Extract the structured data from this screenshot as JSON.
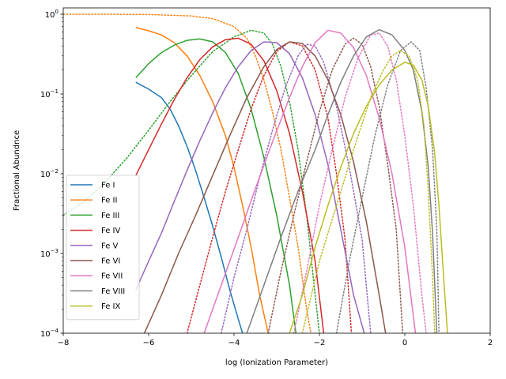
{
  "chart_data": {
    "type": "line",
    "xlabel": "log (Ionization Parameter)",
    "ylabel": "Fractional Abundnce",
    "xlim": [
      -8,
      2
    ],
    "ylim": [
      0.0001,
      1.2
    ],
    "yscale": "log",
    "x_ticks": [
      {
        "value": -8,
        "label": "−8"
      },
      {
        "value": -6,
        "label": "−6"
      },
      {
        "value": -4,
        "label": "−4"
      },
      {
        "value": -2,
        "label": "−2"
      },
      {
        "value": 0,
        "label": "0"
      },
      {
        "value": 2,
        "label": "2"
      }
    ],
    "y_ticks": [
      {
        "value": 0.0001,
        "base": "10",
        "exp": "−4"
      },
      {
        "value": 0.001,
        "base": "10",
        "exp": "−3"
      },
      {
        "value": 0.01,
        "base": "10",
        "exp": "−2"
      },
      {
        "value": 0.1,
        "base": "10",
        "exp": "−1"
      },
      {
        "value": 1,
        "base": "10",
        "exp": "0"
      }
    ],
    "grid": false,
    "legend_position": "lower-left",
    "series": [
      {
        "name": "Fe I",
        "color": "#1f77b4",
        "solid": [
          [
            -6.3,
            0.14
          ],
          [
            -6.0,
            0.115
          ],
          [
            -5.7,
            0.09
          ],
          [
            -5.5,
            0.065
          ],
          [
            -5.3,
            0.04
          ],
          [
            -5.1,
            0.022
          ],
          [
            -4.9,
            0.011
          ],
          [
            -4.7,
            0.005
          ],
          [
            -4.5,
            0.0022
          ],
          [
            -4.3,
            0.0009
          ],
          [
            -4.1,
            0.00035
          ],
          [
            -3.9,
            0.00015
          ],
          [
            -3.8,
            0.0001
          ]
        ],
        "dotted": null
      },
      {
        "name": "Fe II",
        "color": "#ff7f0e",
        "solid": [
          [
            -6.3,
            0.68
          ],
          [
            -6.0,
            0.62
          ],
          [
            -5.7,
            0.55
          ],
          [
            -5.4,
            0.44
          ],
          [
            -5.1,
            0.3
          ],
          [
            -4.8,
            0.17
          ],
          [
            -4.5,
            0.08
          ],
          [
            -4.2,
            0.03
          ],
          [
            -4.0,
            0.012
          ],
          [
            -3.8,
            0.004
          ],
          [
            -3.6,
            0.0012
          ],
          [
            -3.4,
            0.0003
          ],
          [
            -3.2,
            0.0001
          ]
        ],
        "dotted": [
          [
            -8.0,
            1.0
          ],
          [
            -7.0,
            1.0
          ],
          [
            -6.0,
            0.99
          ],
          [
            -5.0,
            0.95
          ],
          [
            -4.5,
            0.88
          ],
          [
            -4.0,
            0.7
          ],
          [
            -3.7,
            0.5
          ],
          [
            -3.5,
            0.3
          ],
          [
            -3.3,
            0.15
          ],
          [
            -3.1,
            0.06
          ],
          [
            -2.9,
            0.02
          ],
          [
            -2.7,
            0.005
          ],
          [
            -2.5,
            0.0012
          ],
          [
            -2.3,
            0.0002
          ],
          [
            -2.2,
            0.0001
          ]
        ]
      },
      {
        "name": "Fe III",
        "color": "#2ca02c",
        "solid": [
          [
            -6.3,
            0.16
          ],
          [
            -6.0,
            0.24
          ],
          [
            -5.7,
            0.33
          ],
          [
            -5.4,
            0.41
          ],
          [
            -5.1,
            0.47
          ],
          [
            -4.8,
            0.49
          ],
          [
            -4.5,
            0.45
          ],
          [
            -4.2,
            0.33
          ],
          [
            -3.9,
            0.18
          ],
          [
            -3.6,
            0.065
          ],
          [
            -3.3,
            0.016
          ],
          [
            -3.0,
            0.003
          ],
          [
            -2.7,
            0.0004
          ],
          [
            -2.55,
            0.0001
          ]
        ],
        "dotted": [
          [
            -8.0,
            0.003
          ],
          [
            -7.5,
            0.0045
          ],
          [
            -7.0,
            0.008
          ],
          [
            -6.5,
            0.016
          ],
          [
            -6.0,
            0.035
          ],
          [
            -5.5,
            0.08
          ],
          [
            -5.0,
            0.17
          ],
          [
            -4.5,
            0.34
          ],
          [
            -4.0,
            0.52
          ],
          [
            -3.6,
            0.63
          ],
          [
            -3.3,
            0.58
          ],
          [
            -3.1,
            0.42
          ],
          [
            -2.9,
            0.22
          ],
          [
            -2.7,
            0.08
          ],
          [
            -2.5,
            0.02
          ],
          [
            -2.3,
            0.003
          ],
          [
            -2.1,
            0.0003
          ],
          [
            -2.0,
            0.0001
          ]
        ]
      },
      {
        "name": "Fe IV",
        "color": "#d62728",
        "solid": [
          [
            -6.3,
            0.0095
          ],
          [
            -6.0,
            0.02
          ],
          [
            -5.7,
            0.042
          ],
          [
            -5.4,
            0.085
          ],
          [
            -5.1,
            0.16
          ],
          [
            -4.8,
            0.27
          ],
          [
            -4.5,
            0.39
          ],
          [
            -4.2,
            0.48
          ],
          [
            -3.9,
            0.5
          ],
          [
            -3.6,
            0.42
          ],
          [
            -3.3,
            0.26
          ],
          [
            -3.0,
            0.11
          ],
          [
            -2.7,
            0.032
          ],
          [
            -2.4,
            0.006
          ],
          [
            -2.1,
            0.0008
          ],
          [
            -1.9,
            0.0001
          ]
        ],
        "dotted": [
          [
            -5.1,
            0.0001
          ],
          [
            -4.8,
            0.0004
          ],
          [
            -4.5,
            0.0016
          ],
          [
            -4.2,
            0.006
          ],
          [
            -3.9,
            0.02
          ],
          [
            -3.6,
            0.065
          ],
          [
            -3.3,
            0.17
          ],
          [
            -3.0,
            0.34
          ],
          [
            -2.7,
            0.45
          ],
          [
            -2.4,
            0.4
          ],
          [
            -2.1,
            0.2
          ],
          [
            -1.8,
            0.05
          ],
          [
            -1.6,
            0.01
          ],
          [
            -1.4,
            0.0015
          ],
          [
            -1.25,
            0.0001
          ]
        ]
      },
      {
        "name": "Fe V",
        "color": "#9467bd",
        "solid": [
          [
            -6.3,
            0.00035
          ],
          [
            -6.0,
            0.0008
          ],
          [
            -5.7,
            0.0018
          ],
          [
            -5.4,
            0.0045
          ],
          [
            -5.1,
            0.011
          ],
          [
            -4.8,
            0.026
          ],
          [
            -4.5,
            0.058
          ],
          [
            -4.2,
            0.12
          ],
          [
            -3.9,
            0.22
          ],
          [
            -3.6,
            0.35
          ],
          [
            -3.3,
            0.45
          ],
          [
            -3.0,
            0.44
          ],
          [
            -2.7,
            0.32
          ],
          [
            -2.4,
            0.16
          ],
          [
            -2.1,
            0.055
          ],
          [
            -1.8,
            0.013
          ],
          [
            -1.5,
            0.002
          ],
          [
            -1.2,
            0.0003
          ],
          [
            -0.95,
            0.0001
          ]
        ],
        "dotted": [
          [
            -4.3,
            0.0001
          ],
          [
            -4.0,
            0.0005
          ],
          [
            -3.7,
            0.002
          ],
          [
            -3.4,
            0.009
          ],
          [
            -3.1,
            0.035
          ],
          [
            -2.8,
            0.12
          ],
          [
            -2.5,
            0.3
          ],
          [
            -2.3,
            0.42
          ],
          [
            -2.1,
            0.4
          ],
          [
            -1.9,
            0.25
          ],
          [
            -1.6,
            0.07
          ],
          [
            -1.3,
            0.012
          ],
          [
            -1.0,
            0.0015
          ],
          [
            -0.8,
            0.0001
          ]
        ]
      },
      {
        "name": "Fe VI",
        "color": "#8c564b",
        "solid": [
          [
            -6.1,
            0.0001
          ],
          [
            -5.7,
            0.0003
          ],
          [
            -5.3,
            0.001
          ],
          [
            -4.9,
            0.003
          ],
          [
            -4.5,
            0.0095
          ],
          [
            -4.1,
            0.03
          ],
          [
            -3.7,
            0.09
          ],
          [
            -3.3,
            0.22
          ],
          [
            -3.0,
            0.36
          ],
          [
            -2.7,
            0.45
          ],
          [
            -2.4,
            0.43
          ],
          [
            -2.1,
            0.3
          ],
          [
            -1.8,
            0.15
          ],
          [
            -1.5,
            0.055
          ],
          [
            -1.2,
            0.014
          ],
          [
            -0.9,
            0.0025
          ],
          [
            -0.6,
            0.0003
          ],
          [
            -0.45,
            0.0001
          ]
        ],
        "dotted": [
          [
            -3.2,
            0.0001
          ],
          [
            -2.9,
            0.0006
          ],
          [
            -2.6,
            0.003
          ],
          [
            -2.3,
            0.014
          ],
          [
            -2.0,
            0.06
          ],
          [
            -1.7,
            0.2
          ],
          [
            -1.4,
            0.42
          ],
          [
            -1.2,
            0.5
          ],
          [
            -1.0,
            0.42
          ],
          [
            -0.8,
            0.22
          ],
          [
            -0.6,
            0.07
          ],
          [
            -0.4,
            0.013
          ],
          [
            -0.2,
            0.002
          ],
          [
            -0.05,
            0.0001
          ]
        ]
      },
      {
        "name": "Fe VII",
        "color": "#e377c2",
        "solid": [
          [
            -4.7,
            0.0001
          ],
          [
            -4.3,
            0.0004
          ],
          [
            -3.9,
            0.0016
          ],
          [
            -3.5,
            0.0065
          ],
          [
            -3.1,
            0.025
          ],
          [
            -2.7,
            0.09
          ],
          [
            -2.4,
            0.22
          ],
          [
            -2.1,
            0.44
          ],
          [
            -1.8,
            0.63
          ],
          [
            -1.5,
            0.58
          ],
          [
            -1.2,
            0.38
          ],
          [
            -0.9,
            0.17
          ],
          [
            -0.6,
            0.05
          ],
          [
            -0.3,
            0.01
          ],
          [
            0.0,
            0.0012
          ],
          [
            0.25,
            0.0001
          ]
        ],
        "dotted": [
          [
            -2.6,
            0.0001
          ],
          [
            -2.3,
            0.0006
          ],
          [
            -2.0,
            0.004
          ],
          [
            -1.7,
            0.02
          ],
          [
            -1.4,
            0.09
          ],
          [
            -1.1,
            0.28
          ],
          [
            -0.8,
            0.55
          ],
          [
            -0.6,
            0.58
          ],
          [
            -0.4,
            0.4
          ],
          [
            -0.2,
            0.15
          ],
          [
            0.0,
            0.03
          ],
          [
            0.2,
            0.004
          ],
          [
            0.4,
            0.0003
          ],
          [
            0.5,
            0.0001
          ]
        ]
      },
      {
        "name": "Fe VIII",
        "color": "#7f7f7f",
        "solid": [
          [
            -3.7,
            0.0001
          ],
          [
            -3.3,
            0.0004
          ],
          [
            -2.9,
            0.0016
          ],
          [
            -2.5,
            0.006
          ],
          [
            -2.1,
            0.02
          ],
          [
            -1.8,
            0.055
          ],
          [
            -1.5,
            0.14
          ],
          [
            -1.2,
            0.3
          ],
          [
            -0.9,
            0.52
          ],
          [
            -0.6,
            0.64
          ],
          [
            -0.3,
            0.55
          ],
          [
            0.0,
            0.35
          ],
          [
            0.2,
            0.2
          ],
          [
            0.4,
            0.06
          ],
          [
            0.55,
            0.012
          ],
          [
            0.65,
            0.0018
          ],
          [
            0.75,
            0.0001
          ]
        ],
        "dotted": [
          [
            -1.6,
            0.0001
          ],
          [
            -1.3,
            0.0008
          ],
          [
            -1.0,
            0.005
          ],
          [
            -0.7,
            0.03
          ],
          [
            -0.4,
            0.13
          ],
          [
            -0.1,
            0.35
          ],
          [
            0.15,
            0.45
          ],
          [
            0.35,
            0.35
          ],
          [
            0.5,
            0.12
          ],
          [
            0.65,
            0.02
          ],
          [
            0.75,
            0.002
          ],
          [
            0.8,
            0.0001
          ]
        ]
      },
      {
        "name": "Fe IX",
        "color": "#bcbd22",
        "solid": [
          [
            -2.7,
            0.0001
          ],
          [
            -2.4,
            0.0003
          ],
          [
            -2.1,
            0.0012
          ],
          [
            -1.8,
            0.004
          ],
          [
            -1.5,
            0.012
          ],
          [
            -1.2,
            0.032
          ],
          [
            -0.9,
            0.07
          ],
          [
            -0.6,
            0.13
          ],
          [
            -0.3,
            0.2
          ],
          [
            0.0,
            0.25
          ],
          [
            0.2,
            0.23
          ],
          [
            0.4,
            0.15
          ],
          [
            0.55,
            0.07
          ],
          [
            0.7,
            0.018
          ],
          [
            0.8,
            0.004
          ],
          [
            0.9,
            0.0006
          ],
          [
            1.0,
            0.0001
          ]
        ],
        "dotted": [
          [
            -2.4,
            0.0001
          ],
          [
            -2.0,
            0.0008
          ],
          [
            -1.6,
            0.004
          ],
          [
            -1.2,
            0.02
          ],
          [
            -0.8,
            0.09
          ],
          [
            -0.5,
            0.2
          ],
          [
            -0.3,
            0.3
          ],
          [
            -0.1,
            0.35
          ],
          [
            0.1,
            0.3
          ],
          [
            0.3,
            0.15
          ],
          [
            0.45,
            0.04
          ],
          [
            0.55,
            0.006
          ],
          [
            0.65,
            0.0005
          ],
          [
            0.7,
            0.0001
          ]
        ]
      }
    ]
  }
}
